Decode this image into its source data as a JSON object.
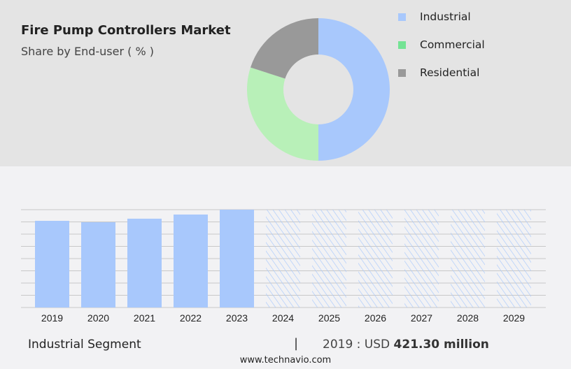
{
  "title": "Fire Pump Controllers Market",
  "subtitle": "Share by End-user ( % )",
  "colors": {
    "industrial": "#a8c8fc",
    "commercial": "#b8f0b8",
    "residential": "#999999",
    "legend_commercial": "#74e394"
  },
  "chart_data": [
    {
      "type": "pie",
      "donut": true,
      "labels": [
        "Industrial",
        "Commercial",
        "Residential"
      ],
      "values": [
        50,
        30,
        20
      ],
      "legend_placement": "right"
    },
    {
      "type": "bar",
      "categories": [
        "2019",
        "2020",
        "2021",
        "2022",
        "2023",
        "2024",
        "2025",
        "2026",
        "2027",
        "2028",
        "2029"
      ],
      "values": [
        421.3,
        414.5,
        431.8,
        452,
        475.7,
        null,
        null,
        null,
        null,
        null,
        null
      ],
      "forecast_from": "2024",
      "grid": true,
      "ylabel": "",
      "xlabel": ""
    }
  ],
  "footer": {
    "segment": "Industrial Segment",
    "separator": "|",
    "value_prefix": "2019 : USD ",
    "value_bold": "421.30 million",
    "url": "www.technavio.com"
  }
}
